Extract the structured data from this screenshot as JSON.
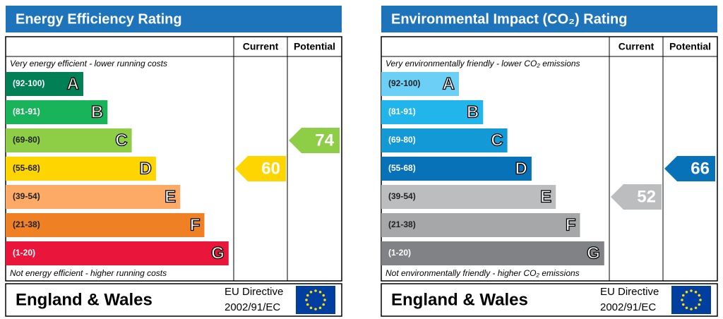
{
  "panels": [
    {
      "title": "Energy Efficiency Rating",
      "header": {
        "current": "Current",
        "potential": "Potential"
      },
      "top_note": "Very energy efficient - lower running costs",
      "bottom_note": "Not energy efficient - higher running costs",
      "bands": [
        {
          "range": "(92-100)",
          "letter": "A",
          "color": "#008054"
        },
        {
          "range": "(81-91)",
          "letter": "B",
          "color": "#19b459"
        },
        {
          "range": "(69-80)",
          "letter": "C",
          "color": "#8dce46"
        },
        {
          "range": "(55-68)",
          "letter": "D",
          "color": "#ffd500"
        },
        {
          "range": "(39-54)",
          "letter": "E",
          "color": "#fcaa65"
        },
        {
          "range": "(21-38)",
          "letter": "F",
          "color": "#ef8023"
        },
        {
          "range": "(1-20)",
          "letter": "G",
          "color": "#e9153b"
        }
      ],
      "current": 60,
      "potential": 74,
      "footer": {
        "region": "England & Wales",
        "directive": "EU Directive",
        "code": "2002/91/EC"
      }
    },
    {
      "title": "Environmental Impact (CO₂) Rating",
      "header": {
        "current": "Current",
        "potential": "Potential"
      },
      "top_note": "Very environmentally friendly - lower CO₂ emissions",
      "bottom_note": "Not environmentally friendly - higher CO₂ emissions",
      "bands": [
        {
          "range": "(92-100)",
          "letter": "A",
          "color": "#6ccff6"
        },
        {
          "range": "(81-91)",
          "letter": "B",
          "color": "#22b5eb"
        },
        {
          "range": "(69-80)",
          "letter": "C",
          "color": "#139ad6"
        },
        {
          "range": "(55-68)",
          "letter": "D",
          "color": "#0872b8"
        },
        {
          "range": "(39-54)",
          "letter": "E",
          "color": "#bcbdbf"
        },
        {
          "range": "(21-38)",
          "letter": "F",
          "color": "#a6a7a9"
        },
        {
          "range": "(1-20)",
          "letter": "G",
          "color": "#808285"
        }
      ],
      "current": 52,
      "potential": 66,
      "footer": {
        "region": "England & Wales",
        "directive": "EU Directive",
        "code": "2002/91/EC"
      }
    }
  ]
}
